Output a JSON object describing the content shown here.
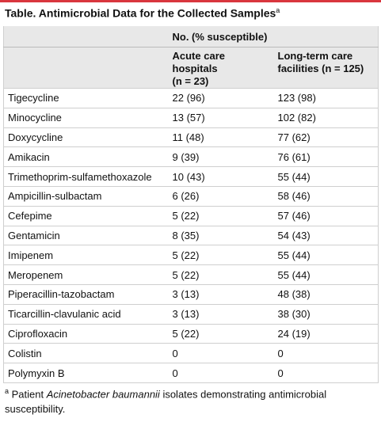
{
  "title": {
    "text": "Table. Antimicrobial Data for the Collected Samples",
    "marker": "a"
  },
  "table": {
    "group_header": "No. (% susceptible)",
    "columns": [
      [
        "Acute care hospitals",
        "(n = 23)"
      ],
      [
        "Long-term care",
        "facilities (n = 125)"
      ]
    ],
    "rows": [
      [
        "Tigecycline",
        "22 (96)",
        "123 (98)"
      ],
      [
        "Minocycline",
        "13 (57)",
        "102 (82)"
      ],
      [
        "Doxycycline",
        "11 (48)",
        "77 (62)"
      ],
      [
        "Amikacin",
        "9 (39)",
        "76 (61)"
      ],
      [
        "Trimethoprim-sulfamethoxazole",
        "10 (43)",
        "55 (44)"
      ],
      [
        "Ampicillin-sulbactam",
        "6 (26)",
        "58 (46)"
      ],
      [
        "Cefepime",
        "5 (22)",
        "57 (46)"
      ],
      [
        "Gentamicin",
        "8 (35)",
        "54 (43)"
      ],
      [
        "Imipenem",
        "5 (22)",
        "55 (44)"
      ],
      [
        "Meropenem",
        "5 (22)",
        "55 (44)"
      ],
      [
        "Piperacillin-tazobactam",
        "3 (13)",
        "48 (38)"
      ],
      [
        "Ticarcillin-clavulanic acid",
        "3 (13)",
        "38 (30)"
      ],
      [
        "Ciprofloxacin",
        "5 (22)",
        "24 (19)"
      ],
      [
        "Colistin",
        "0",
        "0"
      ],
      [
        "Polymyxin B",
        "0",
        "0"
      ]
    ]
  },
  "footnote": {
    "marker": "a",
    "parts": [
      "Patient ",
      "Acinetobacter baumannii",
      " isolates demonstrating antimicrobial susceptibility."
    ]
  }
}
